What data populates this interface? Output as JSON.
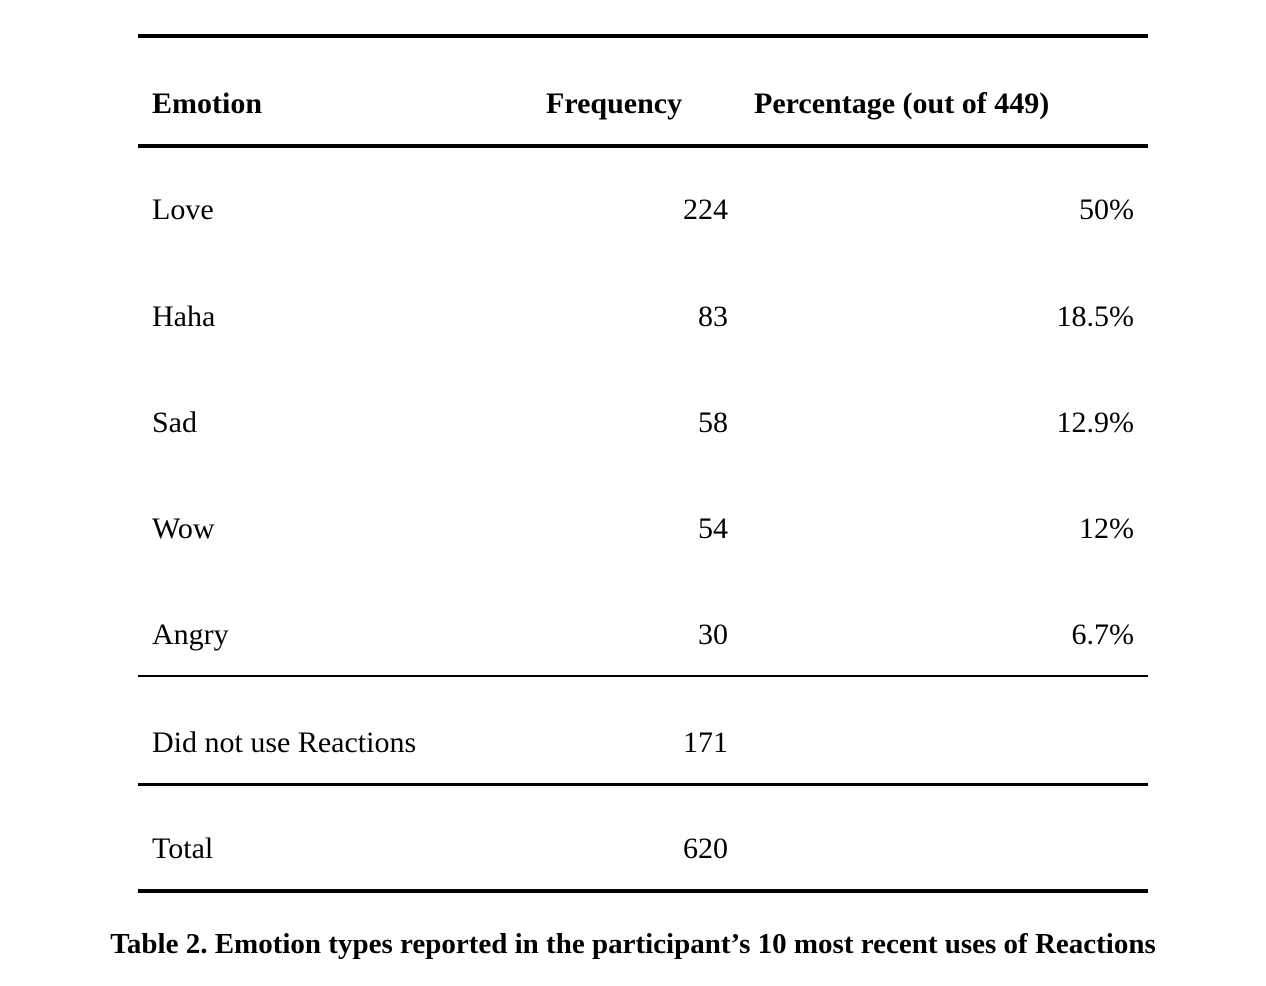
{
  "table": {
    "headers": {
      "emotion": "Emotion",
      "frequency": "Frequency",
      "percentage": "Percentage (out of 449)"
    },
    "rows": [
      {
        "emotion": "Love",
        "frequency": "224",
        "percentage": "50%"
      },
      {
        "emotion": "Haha",
        "frequency": "83",
        "percentage": "18.5%"
      },
      {
        "emotion": "Sad",
        "frequency": "58",
        "percentage": "12.9%"
      },
      {
        "emotion": "Wow",
        "frequency": "54",
        "percentage": "12%"
      },
      {
        "emotion": "Angry",
        "frequency": "30",
        "percentage": "6.7%"
      }
    ],
    "no_reactions": {
      "label": "Did not use Reactions",
      "frequency": "171"
    },
    "total": {
      "label": "Total",
      "frequency": "620"
    }
  },
  "caption": "Table 2. Emotion types reported in the participant’s 10 most recent uses of Reactions"
}
